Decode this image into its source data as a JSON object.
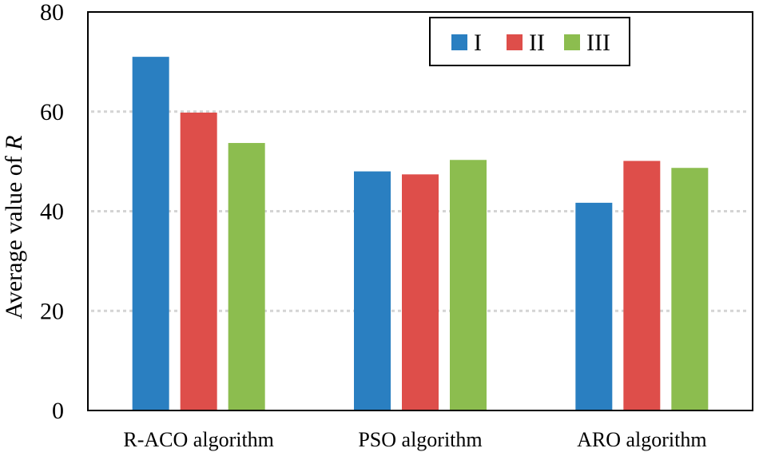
{
  "chart_data": {
    "type": "bar",
    "title": "",
    "xlabel": "",
    "ylabel": "Average value of ",
    "ylabel_italic": "R",
    "ylim": [
      0,
      80
    ],
    "yticks": [
      0,
      20,
      40,
      60,
      80
    ],
    "grid": true,
    "legend_position": "top-right",
    "categories": [
      "R-ACO algorithm",
      "PSO algorithm",
      "ARO algorithm"
    ],
    "series": [
      {
        "name": "I",
        "color": "#2a7fc1",
        "values": [
          71.0,
          48.0,
          41.7
        ]
      },
      {
        "name": "II",
        "color": "#de4e4a",
        "values": [
          59.8,
          47.4,
          50.1
        ]
      },
      {
        "name": "III",
        "color": "#8cbd4f",
        "values": [
          53.7,
          50.3,
          48.7
        ]
      }
    ]
  }
}
